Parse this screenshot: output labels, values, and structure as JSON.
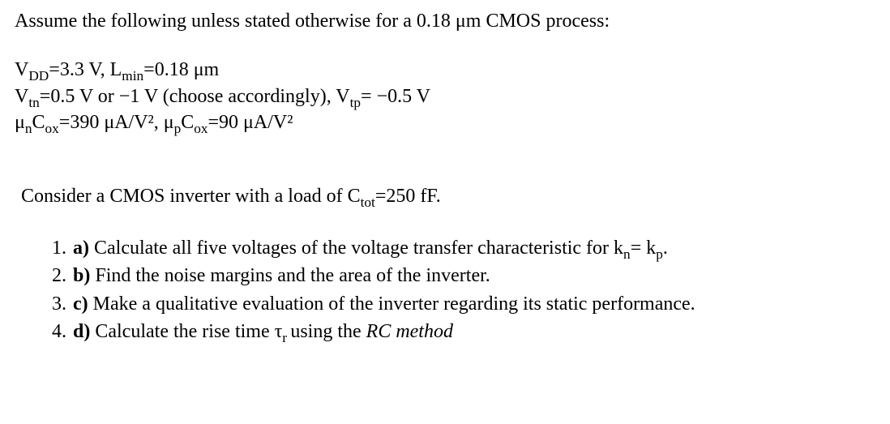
{
  "intro": "Assume the following unless stated otherwise for a 0.18 μm CMOS process:",
  "params": {
    "line1_a": "V",
    "line1_a_sub": "DD",
    "line1_b": "=3.3 V, L",
    "line1_b_sub": "min",
    "line1_c": "=0.18 μm",
    "line2_a": "V",
    "line2_a_sub": "tn",
    "line2_b": "=0.5 V or −1 V (choose accordingly), V",
    "line2_b_sub": "tp",
    "line2_c": "= −0.5 V",
    "line3_a": "μ",
    "line3_a_sub": "n",
    "line3_b": "C",
    "line3_b_sub": "ox",
    "line3_c": "=390 μA/V², μ",
    "line3_c_sub": "p",
    "line3_d": "C",
    "line3_d_sub": "ox",
    "line3_e": "=90 μA/V²"
  },
  "consider_a": "Consider a CMOS inverter with a load of C",
  "consider_sub": "tot",
  "consider_b": "=250 fF.",
  "questions": {
    "q1_label": "a)",
    "q1_a": "  Calculate all five voltages of the voltage transfer characteristic for k",
    "q1_sub1": "n",
    "q1_b": "= k",
    "q1_sub2": "p",
    "q1_c": ".",
    "q2_label": "b)",
    "q2": "  Find the noise margins and the area of the inverter.",
    "q3_label": "c)",
    "q3": "  Make a qualitative evaluation of the inverter regarding its static performance.",
    "q4_label": "d)",
    "q4_a": "  Calculate the rise time τ",
    "q4_sub": "r ",
    "q4_b": "using the ",
    "q4_italic": "RC method"
  }
}
